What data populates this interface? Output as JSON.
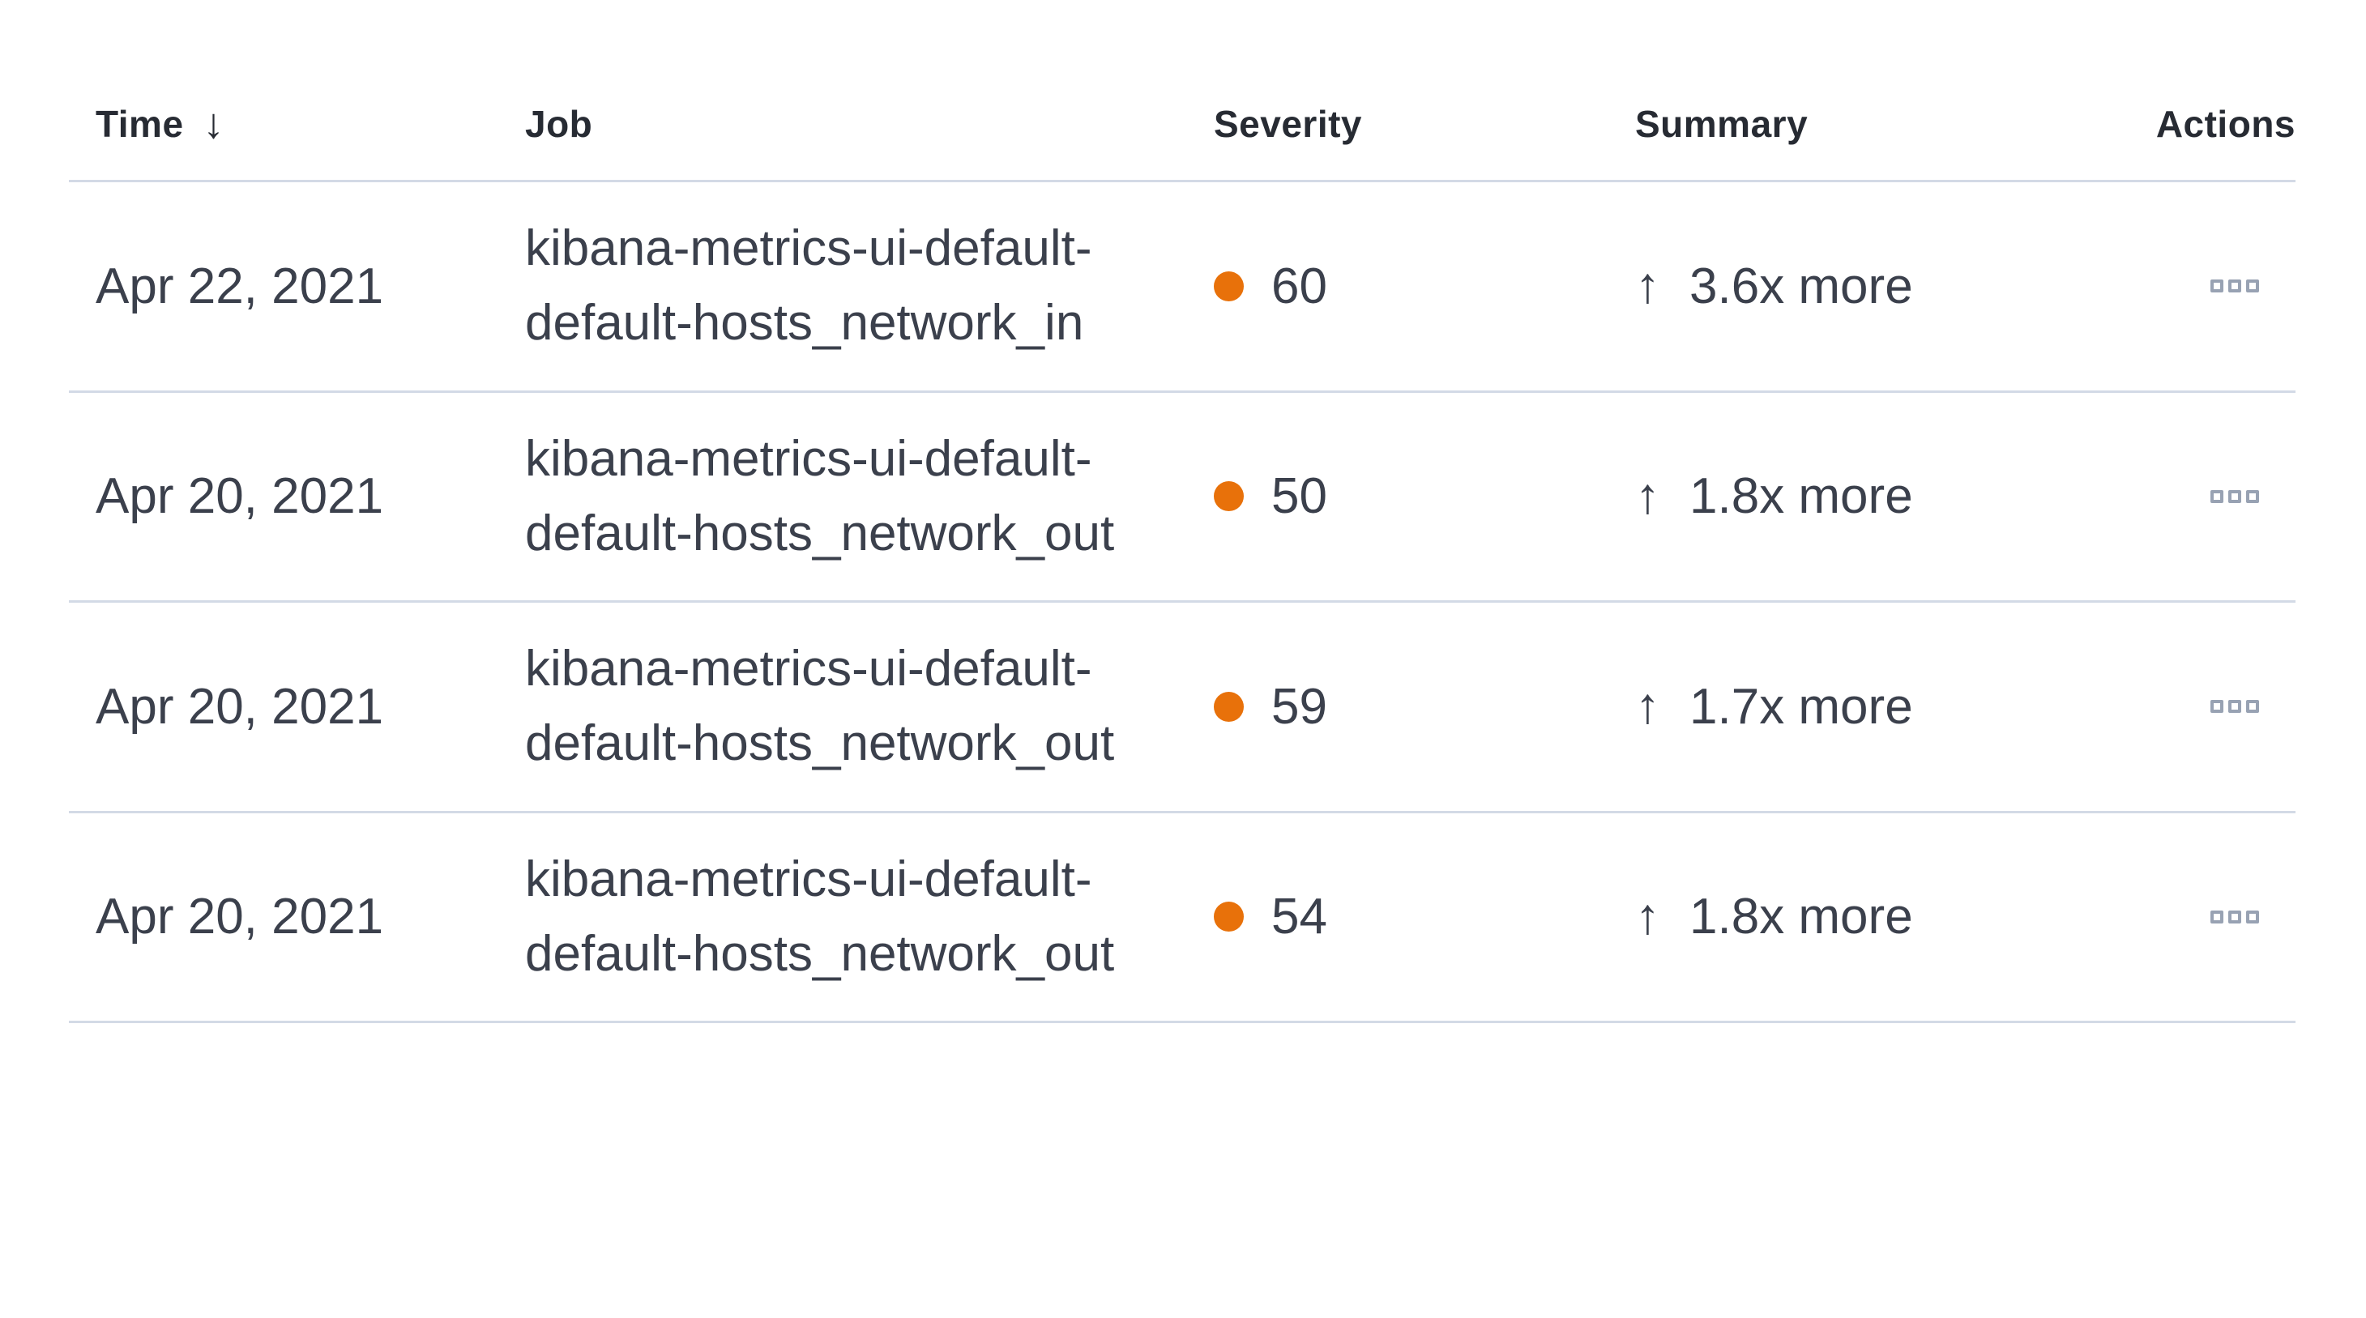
{
  "colors": {
    "severity_dot": "#e8710a",
    "divider": "#d3dae6",
    "header_text": "#272b33",
    "body_text": "#3b404c",
    "actions_icon": "#98a2b3"
  },
  "icons": {
    "sort_descending": "↓",
    "increase_arrow": "↑"
  },
  "table": {
    "columns": {
      "time": "Time",
      "job": "Job",
      "severity": "Severity",
      "summary": "Summary",
      "actions": "Actions"
    },
    "rows": [
      {
        "time": "Apr 22, 2021",
        "job_line1": "kibana-metrics-ui-default-",
        "job_line2": "default-hosts_network_in",
        "severity_score": "60",
        "summary_text": "3.6x more"
      },
      {
        "time": "Apr 20, 2021",
        "job_line1": "kibana-metrics-ui-default-",
        "job_line2": "default-hosts_network_out",
        "severity_score": "50",
        "summary_text": "1.8x more"
      },
      {
        "time": "Apr 20, 2021",
        "job_line1": "kibana-metrics-ui-default-",
        "job_line2": "default-hosts_network_out",
        "severity_score": "59",
        "summary_text": "1.7x more"
      },
      {
        "time": "Apr 20, 2021",
        "job_line1": "kibana-metrics-ui-default-",
        "job_line2": "default-hosts_network_out",
        "severity_score": "54",
        "summary_text": "1.8x more"
      }
    ]
  }
}
